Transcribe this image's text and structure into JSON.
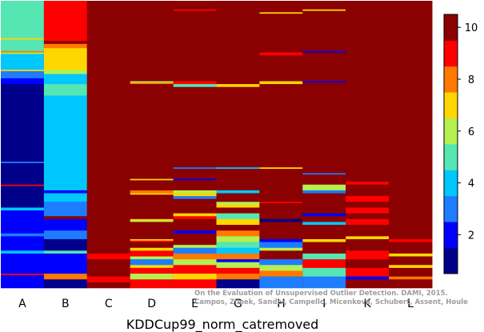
{
  "chart_data": {
    "type": "heatmap",
    "title": "",
    "xlabel": "KDDCup99_norm_catremoved",
    "ylabel": "",
    "columns": [
      "A",
      "B",
      "C",
      "D",
      "E",
      "G",
      "H",
      "I",
      "K",
      "L"
    ],
    "colorbar": {
      "min": 0.5,
      "max": 10.5,
      "ticks": [
        2,
        4,
        6,
        8,
        10
      ],
      "colors": [
        "#00008b",
        "#0000ff",
        "#1e7cff",
        "#00c8ff",
        "#55e6b4",
        "#b4f050",
        "#ffd700",
        "#ff7800",
        "#ff0000",
        "#8b0000"
      ]
    },
    "background_value": 10,
    "column_segments": [
      {
        "column": "A",
        "segments": [
          [
            0.0,
            0.13,
            5
          ],
          [
            0.13,
            0.135,
            7
          ],
          [
            0.135,
            0.175,
            5
          ],
          [
            0.175,
            0.18,
            8
          ],
          [
            0.18,
            0.185,
            6
          ],
          [
            0.185,
            0.24,
            4
          ],
          [
            0.24,
            0.245,
            7
          ],
          [
            0.245,
            0.27,
            3
          ],
          [
            0.27,
            0.29,
            2
          ],
          [
            0.29,
            0.56,
            1
          ],
          [
            0.56,
            0.565,
            3
          ],
          [
            0.565,
            0.64,
            1
          ],
          [
            0.64,
            0.645,
            9
          ],
          [
            0.645,
            0.72,
            1
          ],
          [
            0.72,
            0.73,
            4
          ],
          [
            0.73,
            0.75,
            2
          ],
          [
            0.75,
            0.81,
            2
          ],
          [
            0.81,
            0.82,
            3
          ],
          [
            0.82,
            0.87,
            2
          ],
          [
            0.87,
            0.88,
            4
          ],
          [
            0.88,
            0.9,
            2
          ],
          [
            0.9,
            0.95,
            2
          ],
          [
            0.95,
            0.955,
            9
          ],
          [
            0.955,
            1.0,
            2
          ]
        ]
      },
      {
        "column": "B",
        "segments": [
          [
            0.0,
            0.14,
            9
          ],
          [
            0.14,
            0.15,
            10
          ],
          [
            0.15,
            0.165,
            8
          ],
          [
            0.165,
            0.24,
            7
          ],
          [
            0.24,
            0.255,
            6
          ],
          [
            0.255,
            0.29,
            4
          ],
          [
            0.29,
            0.33,
            5
          ],
          [
            0.33,
            0.38,
            4
          ],
          [
            0.38,
            0.6,
            4
          ],
          [
            0.6,
            0.66,
            4
          ],
          [
            0.66,
            0.67,
            2
          ],
          [
            0.67,
            0.7,
            4
          ],
          [
            0.7,
            0.75,
            3
          ],
          [
            0.75,
            0.76,
            10
          ],
          [
            0.76,
            0.8,
            2
          ],
          [
            0.8,
            0.83,
            3
          ],
          [
            0.83,
            0.87,
            1
          ],
          [
            0.87,
            0.88,
            5
          ],
          [
            0.88,
            0.95,
            2
          ],
          [
            0.95,
            0.97,
            8
          ],
          [
            0.97,
            1.0,
            1
          ]
        ]
      },
      {
        "column": "C",
        "segments": [
          [
            0.0,
            0.88,
            10
          ],
          [
            0.88,
            0.9,
            9
          ],
          [
            0.9,
            0.96,
            10
          ],
          [
            0.96,
            0.98,
            9
          ],
          [
            0.98,
            1.0,
            10
          ]
        ]
      },
      {
        "column": "D",
        "segments": [
          [
            0.0,
            0.28,
            10
          ],
          [
            0.28,
            0.285,
            6
          ],
          [
            0.285,
            0.29,
            8
          ],
          [
            0.29,
            0.62,
            10
          ],
          [
            0.62,
            0.625,
            7
          ],
          [
            0.625,
            0.66,
            10
          ],
          [
            0.66,
            0.67,
            8
          ],
          [
            0.67,
            0.675,
            7
          ],
          [
            0.675,
            0.76,
            10
          ],
          [
            0.76,
            0.765,
            7
          ],
          [
            0.765,
            0.77,
            6
          ],
          [
            0.77,
            0.83,
            10
          ],
          [
            0.83,
            0.835,
            7
          ],
          [
            0.835,
            0.84,
            9
          ],
          [
            0.84,
            0.86,
            10
          ],
          [
            0.86,
            0.87,
            7
          ],
          [
            0.87,
            0.89,
            9
          ],
          [
            0.89,
            0.9,
            6
          ],
          [
            0.9,
            0.92,
            3
          ],
          [
            0.92,
            0.93,
            7
          ],
          [
            0.93,
            0.95,
            9
          ],
          [
            0.95,
            0.97,
            6
          ],
          [
            0.97,
            1.0,
            9
          ]
        ]
      },
      {
        "column": "E",
        "segments": [
          [
            0.0,
            0.03,
            10
          ],
          [
            0.03,
            0.035,
            9
          ],
          [
            0.035,
            0.28,
            10
          ],
          [
            0.28,
            0.29,
            9
          ],
          [
            0.29,
            0.3,
            5
          ],
          [
            0.3,
            0.58,
            10
          ],
          [
            0.58,
            0.585,
            3
          ],
          [
            0.585,
            0.62,
            10
          ],
          [
            0.62,
            0.625,
            2
          ],
          [
            0.625,
            0.66,
            10
          ],
          [
            0.66,
            0.67,
            6
          ],
          [
            0.67,
            0.68,
            7
          ],
          [
            0.68,
            0.69,
            3
          ],
          [
            0.69,
            0.74,
            10
          ],
          [
            0.74,
            0.75,
            7
          ],
          [
            0.75,
            0.76,
            9
          ],
          [
            0.76,
            0.8,
            10
          ],
          [
            0.8,
            0.81,
            2
          ],
          [
            0.81,
            0.85,
            10
          ],
          [
            0.85,
            0.86,
            6
          ],
          [
            0.86,
            0.88,
            3
          ],
          [
            0.88,
            0.9,
            8
          ],
          [
            0.9,
            0.92,
            6
          ],
          [
            0.92,
            0.95,
            9
          ],
          [
            0.95,
            0.97,
            7
          ],
          [
            0.97,
            1.0,
            9
          ]
        ]
      },
      {
        "column": "G",
        "segments": [
          [
            0.0,
            0.29,
            10
          ],
          [
            0.29,
            0.3,
            7
          ],
          [
            0.3,
            0.58,
            10
          ],
          [
            0.58,
            0.585,
            4
          ],
          [
            0.585,
            0.66,
            10
          ],
          [
            0.66,
            0.67,
            4
          ],
          [
            0.67,
            0.7,
            10
          ],
          [
            0.7,
            0.71,
            6
          ],
          [
            0.71,
            0.72,
            7
          ],
          [
            0.72,
            0.74,
            10
          ],
          [
            0.74,
            0.76,
            5
          ],
          [
            0.76,
            0.78,
            7
          ],
          [
            0.78,
            0.8,
            10
          ],
          [
            0.8,
            0.82,
            8
          ],
          [
            0.82,
            0.84,
            6
          ],
          [
            0.84,
            0.86,
            5
          ],
          [
            0.86,
            0.88,
            4
          ],
          [
            0.88,
            0.9,
            8
          ],
          [
            0.9,
            0.91,
            2
          ],
          [
            0.91,
            0.93,
            6
          ],
          [
            0.93,
            0.95,
            9
          ],
          [
            0.95,
            0.97,
            8
          ],
          [
            0.97,
            1.0,
            1
          ]
        ]
      },
      {
        "column": "H",
        "segments": [
          [
            0.0,
            0.04,
            10
          ],
          [
            0.04,
            0.045,
            7
          ],
          [
            0.045,
            0.18,
            10
          ],
          [
            0.18,
            0.19,
            9
          ],
          [
            0.19,
            0.28,
            10
          ],
          [
            0.28,
            0.29,
            7
          ],
          [
            0.29,
            0.58,
            10
          ],
          [
            0.58,
            0.585,
            7
          ],
          [
            0.585,
            0.7,
            10
          ],
          [
            0.7,
            0.705,
            9
          ],
          [
            0.705,
            0.76,
            10
          ],
          [
            0.76,
            0.77,
            1
          ],
          [
            0.77,
            0.83,
            10
          ],
          [
            0.83,
            0.84,
            2
          ],
          [
            0.84,
            0.86,
            3
          ],
          [
            0.86,
            0.87,
            6
          ],
          [
            0.87,
            0.9,
            10
          ],
          [
            0.9,
            0.92,
            3
          ],
          [
            0.92,
            0.94,
            6
          ],
          [
            0.94,
            0.96,
            8
          ],
          [
            0.96,
            1.0,
            3
          ]
        ]
      },
      {
        "column": "I",
        "segments": [
          [
            0.0,
            0.03,
            10
          ],
          [
            0.03,
            0.035,
            7
          ],
          [
            0.035,
            0.175,
            10
          ],
          [
            0.175,
            0.18,
            2
          ],
          [
            0.18,
            0.28,
            10
          ],
          [
            0.28,
            0.285,
            2
          ],
          [
            0.285,
            0.6,
            10
          ],
          [
            0.6,
            0.605,
            3
          ],
          [
            0.605,
            0.64,
            10
          ],
          [
            0.64,
            0.66,
            6
          ],
          [
            0.66,
            0.67,
            3
          ],
          [
            0.67,
            0.74,
            10
          ],
          [
            0.74,
            0.75,
            2
          ],
          [
            0.75,
            0.77,
            10
          ],
          [
            0.77,
            0.78,
            4
          ],
          [
            0.78,
            0.83,
            10
          ],
          [
            0.83,
            0.84,
            7
          ],
          [
            0.84,
            0.88,
            10
          ],
          [
            0.88,
            0.9,
            5
          ],
          [
            0.9,
            0.93,
            9
          ],
          [
            0.93,
            0.96,
            5
          ],
          [
            0.96,
            1.0,
            3
          ]
        ]
      },
      {
        "column": "K",
        "segments": [
          [
            0.0,
            0.63,
            10
          ],
          [
            0.63,
            0.64,
            9
          ],
          [
            0.64,
            0.68,
            10
          ],
          [
            0.68,
            0.7,
            9
          ],
          [
            0.7,
            0.72,
            10
          ],
          [
            0.72,
            0.74,
            9
          ],
          [
            0.74,
            0.76,
            10
          ],
          [
            0.76,
            0.78,
            9
          ],
          [
            0.78,
            0.82,
            10
          ],
          [
            0.82,
            0.83,
            7
          ],
          [
            0.83,
            0.87,
            10
          ],
          [
            0.87,
            0.9,
            9
          ],
          [
            0.9,
            0.93,
            10
          ],
          [
            0.93,
            0.96,
            9
          ],
          [
            0.96,
            0.97,
            2
          ],
          [
            0.97,
            1.0,
            10
          ]
        ]
      },
      {
        "column": "L",
        "segments": [
          [
            0.0,
            0.83,
            10
          ],
          [
            0.83,
            0.84,
            9
          ],
          [
            0.84,
            0.88,
            10
          ],
          [
            0.88,
            0.89,
            7
          ],
          [
            0.89,
            0.92,
            10
          ],
          [
            0.92,
            0.93,
            7
          ],
          [
            0.93,
            0.96,
            10
          ],
          [
            0.96,
            0.97,
            8
          ],
          [
            0.97,
            1.0,
            10
          ]
        ]
      }
    ]
  },
  "watermark": {
    "line1": "On the Evaluation of Unsupervised Outlier Detection. DAMI, 2015.",
    "line2": "Campos, Zimek, Sander, Campello, Micenková, Schubert, Assent, Houle"
  }
}
